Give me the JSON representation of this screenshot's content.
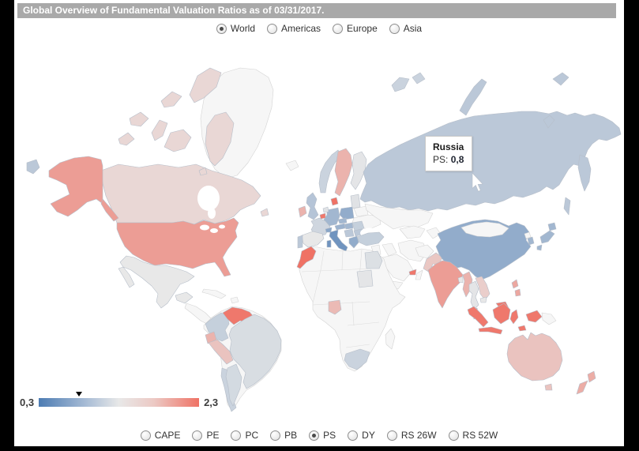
{
  "title": "Global Overview of Fundamental Valuation Ratios as of 03/31/2017.",
  "region_selector": {
    "options": [
      {
        "label": "World",
        "selected": true
      },
      {
        "label": "Americas",
        "selected": false
      },
      {
        "label": "Europe",
        "selected": false
      },
      {
        "label": "Asia",
        "selected": false
      }
    ]
  },
  "ratio_selector": {
    "options": [
      {
        "label": "CAPE",
        "selected": false
      },
      {
        "label": "PE",
        "selected": false
      },
      {
        "label": "PC",
        "selected": false
      },
      {
        "label": "PB",
        "selected": false
      },
      {
        "label": "PS",
        "selected": true
      },
      {
        "label": "DY",
        "selected": false
      },
      {
        "label": "RS 26W",
        "selected": false
      },
      {
        "label": "RS 52W",
        "selected": false
      }
    ]
  },
  "tooltip": {
    "country": "Russia",
    "label": "PS:",
    "value": "0,8"
  },
  "legend": {
    "min_label": "0,3",
    "max_label": "2,3",
    "min": 0.3,
    "max": 2.3
  },
  "colors": {
    "scale_low": "#4d7cb3",
    "scale_mid": "#e8e8e8",
    "scale_high": "#ef7265",
    "no_data": "#f6f6f6",
    "border": "#b6bec9",
    "title_bg": "#a9a9a9",
    "page_frame": "#000000"
  },
  "chart_data": {
    "type": "choropleth",
    "metric": "PS",
    "domain": [
      0.3,
      2.3
    ],
    "legend_position": "bottom-left",
    "highlight": {
      "country": "Russia",
      "metric": "PS",
      "value": 0.8,
      "display": "0,8"
    },
    "values": {
      "Russia": 0.8,
      "United States": 1.7,
      "Canada": 1.32,
      "Greenland": null,
      "Mexico": 1.3,
      "Cuba": null,
      "Central America": null,
      "Venezuela": 2.2,
      "Colombia": 0.9,
      "Ecuador": 1.5,
      "Peru": 1.4,
      "Brazil": 1.1,
      "Chile": 0.95,
      "Argentina": 1.05,
      "Iceland": null,
      "Ireland": 1.5,
      "United Kingdom": 0.75,
      "Portugal": 0.8,
      "Spain": 1.3,
      "France": 1.0,
      "Belgium": 2.2,
      "Netherlands": 1.2,
      "Germany": 0.6,
      "Denmark": 2.3,
      "Norway": 0.95,
      "Sweden": 1.5,
      "Finland": 1.25,
      "Poland": 0.5,
      "Czechia": 0.6,
      "Austria": 0.55,
      "Switzerland": 0.45,
      "Italy": 0.35,
      "Greece": 0.5,
      "Hungary": 0.6,
      "Romania": 0.9,
      "Serbia": 0.8,
      "Bulgaria": 0.8,
      "Baltics": 1.2,
      "Belarus": null,
      "Ukraine": null,
      "Turkey": 0.9,
      "Kazakhstan": null,
      "Iran": null,
      "Iraq": null,
      "Syria": null,
      "Saudi Arabia": null,
      "United Arab Emirates": 2.2,
      "Oman": null,
      "Yemen": null,
      "Afghanistan": null,
      "Central Asia": null,
      "Pakistan": 1.38,
      "India": 1.7,
      "Bangladesh": 1.3,
      "Myanmar": 1.5,
      "Thailand": 1.25,
      "Vietnam": 1.35,
      "Cambodia": 1.3,
      "China": 0.5,
      "Mongolia": null,
      "North Korea": null,
      "South Korea": 0.6,
      "Japan": 0.6,
      "Philippines": 1.6,
      "Malaysia": 2.2,
      "Indonesia": 2.2,
      "Papua New Guinea": null,
      "Australia": 1.4,
      "New Zealand": 1.55,
      "Morocco": 2.3,
      "Egypt": 1.15,
      "Sudan": 1.25,
      "Nigeria": 1.45,
      "South Africa": 0.95,
      "Madagascar": null
    }
  }
}
